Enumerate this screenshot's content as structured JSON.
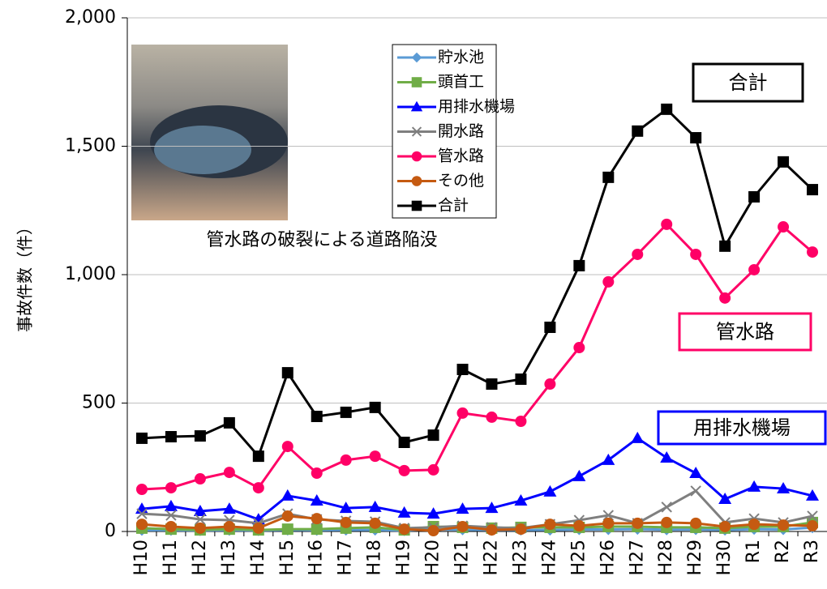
{
  "chart_data": {
    "type": "line",
    "ylabel": "事故件数（件）",
    "categories": [
      "H10",
      "H11",
      "H12",
      "H13",
      "H14",
      "H15",
      "H16",
      "H17",
      "H18",
      "H19",
      "H20",
      "H21",
      "H22",
      "H23",
      "H24",
      "H25",
      "H26",
      "H27",
      "H28",
      "H29",
      "H30",
      "R1",
      "R2",
      "R3"
    ],
    "ylim": [
      0,
      2000
    ],
    "yticks": [
      0,
      {
        "value": 500,
        "label": "500"
      },
      {
        "value": 1000,
        "label": "1,000"
      },
      {
        "value": 1500,
        "label": "1,500"
      },
      {
        "value": 2000,
        "label": "2,000"
      }
    ],
    "grid": true,
    "series": [
      {
        "name": "貯水池",
        "color": "#5b9bd5",
        "marker": "diamond",
        "values": [
          5,
          5,
          4,
          5,
          4,
          6,
          5,
          6,
          6,
          4,
          8,
          7,
          5,
          6,
          6,
          8,
          8,
          9,
          7,
          8,
          6,
          9,
          8,
          15
        ]
      },
      {
        "name": "頭首工",
        "color": "#70ad47",
        "marker": "square",
        "values": [
          13,
          9,
          6,
          9,
          6,
          9,
          9,
          13,
          16,
          6,
          19,
          16,
          13,
          16,
          16,
          16,
          19,
          19,
          16,
          16,
          13,
          19,
          19,
          35
        ]
      },
      {
        "name": "用排水機場",
        "color": "#0000ff",
        "marker": "triangle",
        "values": [
          88,
          98,
          79,
          88,
          47,
          139,
          120,
          91,
          95,
          73,
          69,
          88,
          91,
          120,
          155,
          215,
          278,
          363,
          287,
          227,
          126,
          174,
          167,
          139
        ]
      },
      {
        "name": "開水路",
        "color": "#7f7f7f",
        "marker": "x",
        "values": [
          69,
          63,
          47,
          44,
          32,
          69,
          47,
          41,
          38,
          13,
          16,
          22,
          16,
          13,
          28,
          44,
          63,
          32,
          95,
          158,
          35,
          50,
          35,
          60
        ]
      },
      {
        "name": "管水路",
        "color": "#ff0066",
        "marker": "circle",
        "values": [
          164,
          170,
          205,
          230,
          170,
          331,
          227,
          278,
          293,
          237,
          240,
          461,
          445,
          429,
          574,
          716,
          972,
          1079,
          1196,
          1079,
          909,
          1019,
          1186,
          1088
        ]
      },
      {
        "name": "その他",
        "color": "#c55a11",
        "marker": "circle",
        "values": [
          28,
          19,
          13,
          19,
          13,
          60,
          50,
          35,
          32,
          9,
          3,
          19,
          6,
          9,
          28,
          22,
          32,
          32,
          35,
          32,
          19,
          28,
          25,
          22
        ]
      },
      {
        "name": "合計",
        "color": "#000000",
        "marker": "square",
        "values": [
          363,
          369,
          372,
          423,
          293,
          618,
          448,
          464,
          483,
          347,
          375,
          631,
          574,
          593,
          795,
          1035,
          1379,
          1559,
          1644,
          1533,
          1111,
          1303,
          1439,
          1331
        ]
      }
    ],
    "annotations": [
      {
        "text": "合計",
        "color": "#000000"
      },
      {
        "text": "管水路",
        "color": "#ff0066"
      },
      {
        "text": "用排水機場",
        "color": "#0000ff"
      }
    ],
    "photo_caption": "管水路の破裂による道路陥没"
  }
}
